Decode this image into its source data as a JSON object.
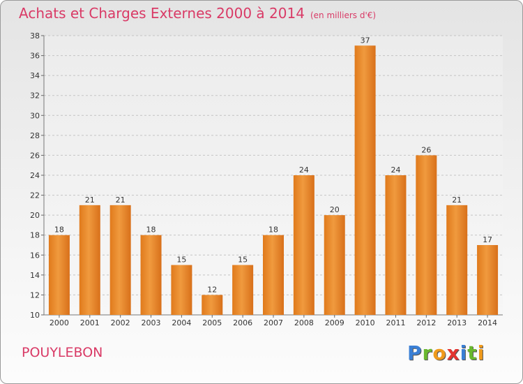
{
  "header": {
    "title": "Achats et Charges Externes 2000 à 2014",
    "subtitle": "(en milliers d'€)"
  },
  "footer": {
    "commune": "POUYLEBON",
    "logo_letters": [
      {
        "ch": "P",
        "color": "#3a7fd5"
      },
      {
        "ch": "r",
        "color": "#6ab82e"
      },
      {
        "ch": "o",
        "color": "#f09a1b"
      },
      {
        "ch": "x",
        "color": "#e3342f"
      },
      {
        "ch": "i",
        "color": "#3a7fd5"
      },
      {
        "ch": "t",
        "color": "#6ab82e"
      },
      {
        "ch": "i",
        "color": "#f09a1b"
      }
    ]
  },
  "chart_data": {
    "type": "bar",
    "categories": [
      "2000",
      "2001",
      "2002",
      "2003",
      "2004",
      "2005",
      "2006",
      "2007",
      "2008",
      "2009",
      "2010",
      "2011",
      "2012",
      "2013",
      "2014"
    ],
    "values": [
      18,
      21,
      21,
      18,
      15,
      12,
      15,
      18,
      24,
      20,
      37,
      24,
      26,
      21,
      17
    ],
    "ylim": [
      10,
      38
    ],
    "yticks": [
      10,
      12,
      14,
      16,
      18,
      20,
      22,
      24,
      26,
      28,
      30,
      32,
      34,
      36,
      38
    ],
    "grid": true,
    "bar_color": "#f09a3e",
    "title": "Achats et Charges Externes 2000 à 2014",
    "xlabel": "",
    "ylabel": ""
  }
}
